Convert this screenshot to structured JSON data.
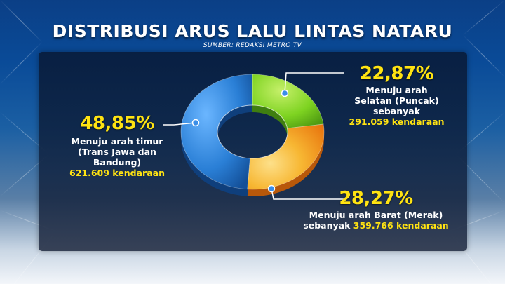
{
  "header": {
    "title": "DISTRIBUSI ARUS LALU LINTAS NATARU",
    "source": "SUMBER: REDAKSI METRO TV"
  },
  "colors": {
    "timur": "#2a7fd6",
    "selatan": "#7ed321",
    "barat": "#f08b10",
    "barat_light": "#f7b733",
    "label_accent": "#ffe312"
  },
  "chart_data": {
    "type": "pie",
    "style": "donut",
    "title": "DISTRIBUSI ARUS LALU LINTAS NATARU",
    "categories": [
      "Menuju arah timur (Trans Jawa dan Bandung)",
      "Menuju arah Selatan (Puncak)",
      "Menuju arah Barat (Merak)"
    ],
    "values": [
      48.85,
      22.87,
      28.27
    ],
    "value_labels": [
      "48,85%",
      "22,87%",
      "28,27%"
    ],
    "vehicles": [
      621609,
      291059,
      359766
    ]
  },
  "labels": {
    "timur": {
      "pct": "48,85%",
      "line1": "Menuju arah timur",
      "line2": "(Trans Jawa dan",
      "line3": "Bandung)",
      "count": "621.609 kendaraan"
    },
    "selatan": {
      "pct": "22,87%",
      "line1": "Menuju arah",
      "line2": "Selatan (Puncak)",
      "line3": "sebanyak",
      "count": "291.059 kendaraan"
    },
    "barat": {
      "pct": "28,27%",
      "line1": "Menuju arah Barat (Merak)",
      "prefix": "sebanyak",
      "count": "359.766 kendaraan"
    }
  }
}
